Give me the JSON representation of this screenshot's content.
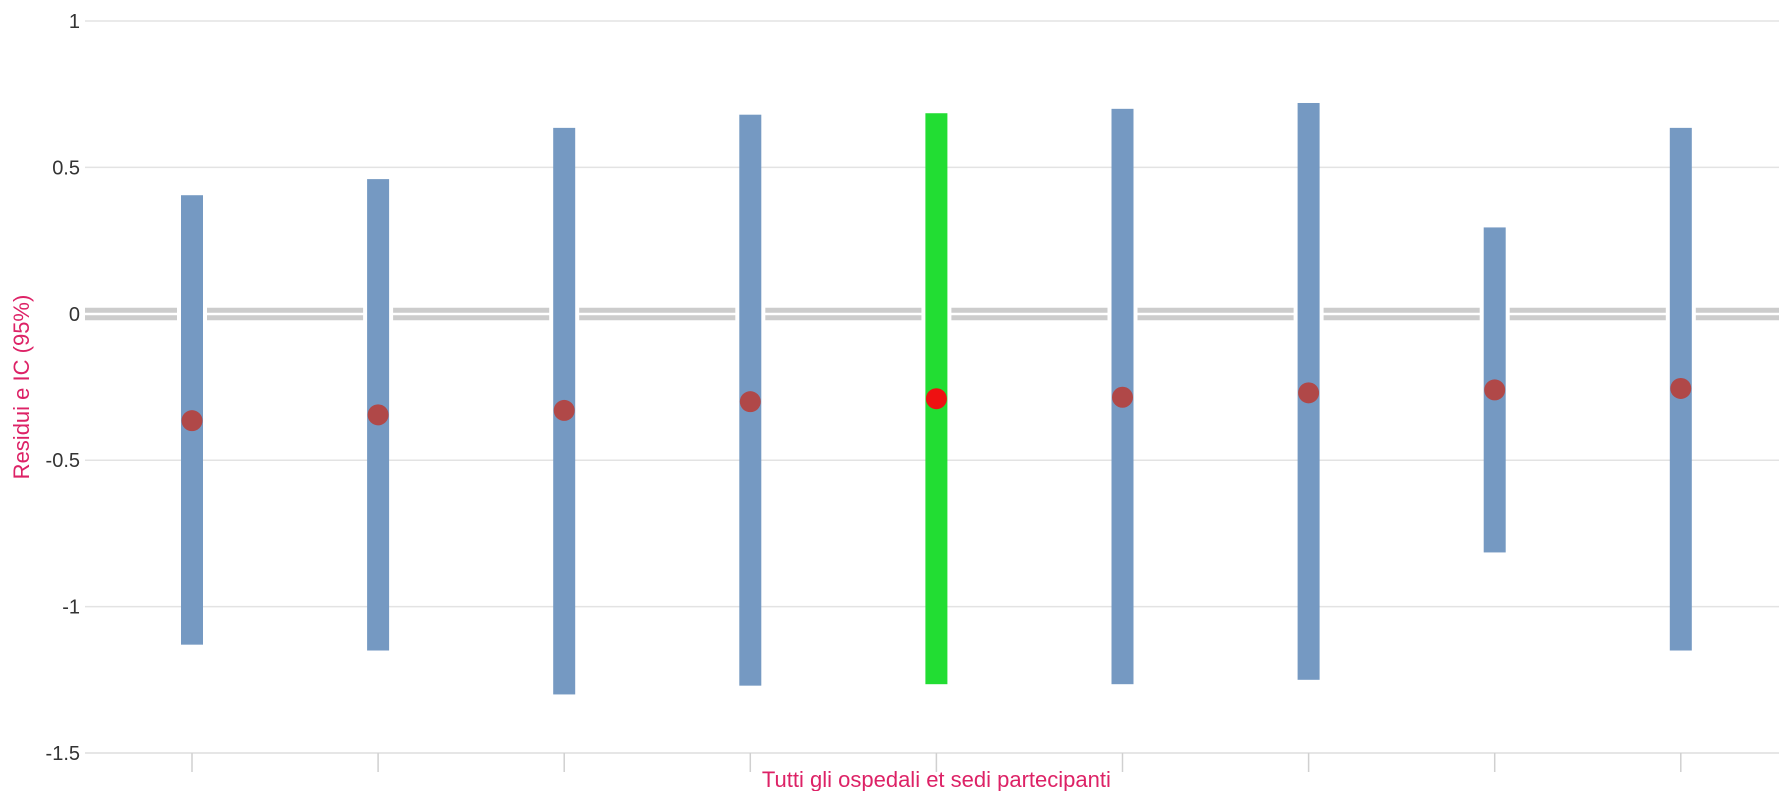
{
  "chart_data": {
    "type": "error-bar",
    "title": "",
    "xlabel": "Tutti gli ospedali et sedi partecipanti",
    "ylabel": "Residui e IC (95%)",
    "ylim": [
      -1.5,
      1
    ],
    "yticks": [
      {
        "value": 1,
        "label": "1"
      },
      {
        "value": 0.5,
        "label": "0.5"
      },
      {
        "value": 0,
        "label": "0"
      },
      {
        "value": -0.5,
        "label": "-0.5"
      },
      {
        "value": -1,
        "label": "-1"
      },
      {
        "value": -1.5,
        "label": "-1.5"
      }
    ],
    "grid": true,
    "reference_line": 0,
    "points": [
      {
        "estimate": -0.365,
        "lower": -1.13,
        "upper": 0.405,
        "highlighted": false
      },
      {
        "estimate": -0.345,
        "lower": -1.15,
        "upper": 0.46,
        "highlighted": false
      },
      {
        "estimate": -0.33,
        "lower": -1.3,
        "upper": 0.635,
        "highlighted": false
      },
      {
        "estimate": -0.3,
        "lower": -1.27,
        "upper": 0.68,
        "highlighted": false
      },
      {
        "estimate": -0.29,
        "lower": -1.265,
        "upper": 0.685,
        "highlighted": true
      },
      {
        "estimate": -0.285,
        "lower": -1.265,
        "upper": 0.7,
        "highlighted": false
      },
      {
        "estimate": -0.27,
        "lower": -1.25,
        "upper": 0.72,
        "highlighted": false
      },
      {
        "estimate": -0.26,
        "lower": -0.815,
        "upper": 0.295,
        "highlighted": false
      },
      {
        "estimate": -0.255,
        "lower": -1.15,
        "upper": 0.635,
        "highlighted": false
      }
    ]
  },
  "colors": {
    "interval": "#7599c2",
    "interval_highlight": "#22dd33",
    "point": "#b04848",
    "point_highlight": "#ee1111",
    "axis_title": "#dd2266",
    "grid": "#e3e3e3",
    "reference": "#cccccc"
  }
}
